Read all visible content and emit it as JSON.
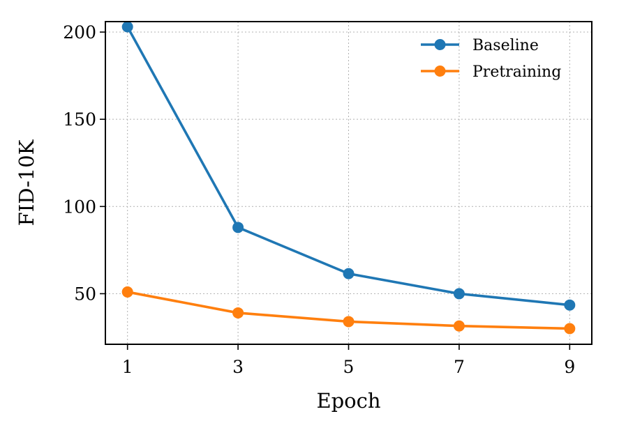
{
  "chart_data": {
    "type": "line",
    "title": "",
    "xlabel": "Epoch",
    "ylabel": "FID-10K",
    "x": [
      1,
      3,
      5,
      7,
      9
    ],
    "xticks": [
      1,
      3,
      5,
      7,
      9
    ],
    "xtick_labels": [
      "1",
      "3",
      "5",
      "7",
      "9"
    ],
    "yticks": [
      50,
      100,
      150,
      200
    ],
    "ytick_labels": [
      "50",
      "100",
      "150",
      "200"
    ],
    "xlim": [
      0.6,
      9.4
    ],
    "ylim": [
      21,
      206
    ],
    "grid": true,
    "legend_position": "top-right",
    "series": [
      {
        "name": "Baseline",
        "color": "#1f77b4",
        "values": [
          203,
          88,
          61.5,
          50,
          43.5
        ]
      },
      {
        "name": "Pretraining",
        "color": "#ff7f0e",
        "values": [
          51,
          39,
          34,
          31.5,
          30
        ]
      }
    ]
  }
}
